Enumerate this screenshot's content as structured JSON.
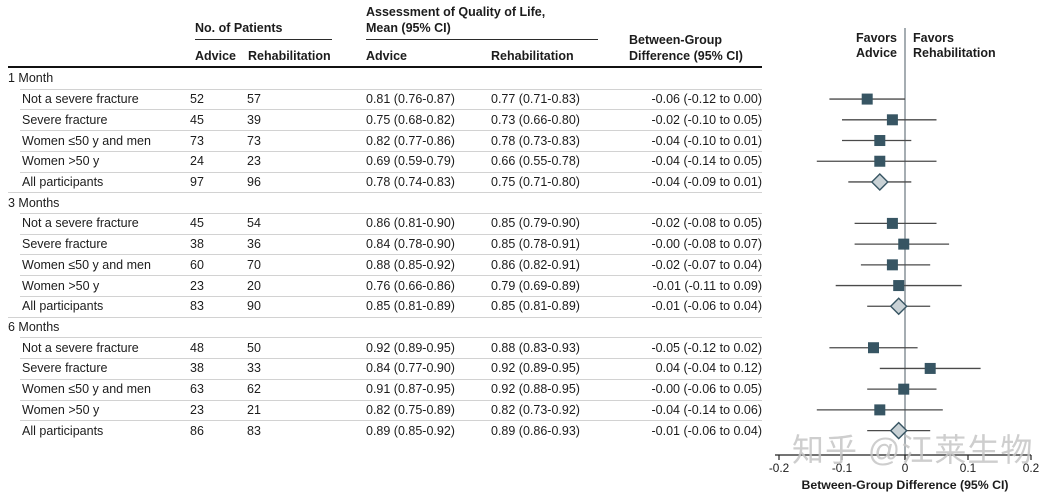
{
  "header": {
    "patients_group": "No. of Patients",
    "qol_line1": "Assessment of Quality of Life,",
    "qol_line2": "Mean (95% CI)",
    "diff_line1": "Between-Group",
    "diff_line2": "Difference (95% CI)",
    "advice": "Advice",
    "rehabilitation": "Rehabilitation"
  },
  "plot": {
    "favors_left_line1": "Favors",
    "favors_left_line2": "Advice",
    "favors_right_line1": "Favors",
    "favors_right_line2": "Rehabilitation",
    "axis_label": "Between-Group Difference (95% CI)",
    "xlim": [
      -0.2,
      0.2
    ],
    "ticks": [
      {
        "value": -0.2,
        "label": "-0.2"
      },
      {
        "value": -0.1,
        "label": "-0.1"
      },
      {
        "value": 0,
        "label": "0"
      },
      {
        "value": 0.1,
        "label": "0.1"
      },
      {
        "value": 0.2,
        "label": "0.2"
      }
    ],
    "colors": {
      "square_marker": "#375563",
      "diamond_fill": "#c9d2d6",
      "diamond_stroke": "#375563",
      "ci_line": "#4a4a4a",
      "zero_line": "#7f8a91",
      "axis": "#222222"
    }
  },
  "watermark": "知乎 @江莱生物",
  "chart_data": {
    "type": "scatter",
    "subtype": "forest-plot-with-table",
    "title": "",
    "xlabel": "Between-Group Difference (95% CI)",
    "xlim": [
      -0.2,
      0.2
    ],
    "xticks": [
      -0.2,
      -0.1,
      0,
      0.1,
      0.2
    ],
    "legend": {
      "left": "Favors Advice",
      "right": "Favors Rehabilitation"
    },
    "sections": [
      {
        "label": "1 Month",
        "rows": [
          {
            "label": "Not a severe fracture",
            "n_advice": "52",
            "n_rehab": "57",
            "qol_advice": "0.81 (0.76-0.87)",
            "qol_rehab": "0.77 (0.71-0.83)",
            "diff_text": "-0.06 (-0.12 to 0.00)",
            "est": -0.06,
            "lo": -0.12,
            "hi": 0.0,
            "marker": "square"
          },
          {
            "label": "Severe fracture",
            "n_advice": "45",
            "n_rehab": "39",
            "qol_advice": "0.75 (0.68-0.82)",
            "qol_rehab": "0.73 (0.66-0.80)",
            "diff_text": "-0.02 (-0.10 to 0.05)",
            "est": -0.02,
            "lo": -0.1,
            "hi": 0.05,
            "marker": "square"
          },
          {
            "label": "Women ≤50 y and men",
            "n_advice": "73",
            "n_rehab": "73",
            "qol_advice": "0.82 (0.77-0.86)",
            "qol_rehab": "0.78 (0.73-0.83)",
            "diff_text": "-0.04 (-0.10 to 0.01)",
            "est": -0.04,
            "lo": -0.1,
            "hi": 0.01,
            "marker": "square"
          },
          {
            "label": "Women >50 y",
            "n_advice": "24",
            "n_rehab": "23",
            "qol_advice": "0.69 (0.59-0.79)",
            "qol_rehab": "0.66 (0.55-0.78)",
            "diff_text": "-0.04 (-0.14 to 0.05)",
            "est": -0.04,
            "lo": -0.14,
            "hi": 0.05,
            "marker": "square"
          },
          {
            "label": "All participants",
            "n_advice": "97",
            "n_rehab": "96",
            "qol_advice": "0.78 (0.74-0.83)",
            "qol_rehab": "0.75 (0.71-0.80)",
            "diff_text": "-0.04 (-0.09 to 0.01)",
            "est": -0.04,
            "lo": -0.09,
            "hi": 0.01,
            "marker": "diamond"
          }
        ]
      },
      {
        "label": "3 Months",
        "rows": [
          {
            "label": "Not a severe fracture",
            "n_advice": "45",
            "n_rehab": "54",
            "qol_advice": "0.86 (0.81-0.90)",
            "qol_rehab": "0.85 (0.79-0.90)",
            "diff_text": "-0.02 (-0.08 to 0.05)",
            "est": -0.02,
            "lo": -0.08,
            "hi": 0.05,
            "marker": "square"
          },
          {
            "label": "Severe fracture",
            "n_advice": "38",
            "n_rehab": "36",
            "qol_advice": "0.84 (0.78-0.90)",
            "qol_rehab": "0.85 (0.78-0.91)",
            "diff_text": "-0.00 (-0.08 to 0.07)",
            "est": -0.002,
            "lo": -0.08,
            "hi": 0.07,
            "marker": "square"
          },
          {
            "label": "Women ≤50 y and men",
            "n_advice": "60",
            "n_rehab": "70",
            "qol_advice": "0.88 (0.85-0.92)",
            "qol_rehab": "0.86 (0.82-0.91)",
            "diff_text": "-0.02 (-0.07 to 0.04)",
            "est": -0.02,
            "lo": -0.07,
            "hi": 0.04,
            "marker": "square"
          },
          {
            "label": "Women >50 y",
            "n_advice": "23",
            "n_rehab": "20",
            "qol_advice": "0.76 (0.66-0.86)",
            "qol_rehab": "0.79 (0.69-0.89)",
            "diff_text": "-0.01 (-0.11 to 0.09)",
            "est": -0.01,
            "lo": -0.11,
            "hi": 0.09,
            "marker": "square"
          },
          {
            "label": "All participants",
            "n_advice": "83",
            "n_rehab": "90",
            "qol_advice": "0.85 (0.81-0.89)",
            "qol_rehab": "0.85 (0.81-0.89)",
            "diff_text": "-0.01 (-0.06 to 0.04)",
            "est": -0.01,
            "lo": -0.06,
            "hi": 0.04,
            "marker": "diamond"
          }
        ]
      },
      {
        "label": "6 Months",
        "rows": [
          {
            "label": "Not a severe fracture",
            "n_advice": "48",
            "n_rehab": "50",
            "qol_advice": "0.92 (0.89-0.95)",
            "qol_rehab": "0.88 (0.83-0.93)",
            "diff_text": "-0.05 (-0.12 to 0.02)",
            "est": -0.05,
            "lo": -0.12,
            "hi": 0.02,
            "marker": "square"
          },
          {
            "label": "Severe fracture",
            "n_advice": "38",
            "n_rehab": "33",
            "qol_advice": "0.84 (0.77-0.90)",
            "qol_rehab": "0.92 (0.89-0.95)",
            "diff_text": "0.04 (-0.04 to 0.12)",
            "est": 0.04,
            "lo": -0.04,
            "hi": 0.12,
            "marker": "square"
          },
          {
            "label": "Women ≤50 y and men",
            "n_advice": "63",
            "n_rehab": "62",
            "qol_advice": "0.91 (0.87-0.95)",
            "qol_rehab": "0.92 (0.88-0.95)",
            "diff_text": "-0.00 (-0.06 to 0.05)",
            "est": -0.002,
            "lo": -0.06,
            "hi": 0.05,
            "marker": "square"
          },
          {
            "label": "Women >50 y",
            "n_advice": "23",
            "n_rehab": "21",
            "qol_advice": "0.82 (0.75-0.89)",
            "qol_rehab": "0.82 (0.73-0.92)",
            "diff_text": "-0.04 (-0.14 to 0.06)",
            "est": -0.04,
            "lo": -0.14,
            "hi": 0.06,
            "marker": "square"
          },
          {
            "label": "All participants",
            "n_advice": "86",
            "n_rehab": "83",
            "qol_advice": "0.89 (0.85-0.92)",
            "qol_rehab": "0.89 (0.86-0.93)",
            "diff_text": "-0.01 (-0.06 to 0.04)",
            "est": -0.01,
            "lo": -0.06,
            "hi": 0.04,
            "marker": "diamond"
          }
        ]
      }
    ]
  }
}
